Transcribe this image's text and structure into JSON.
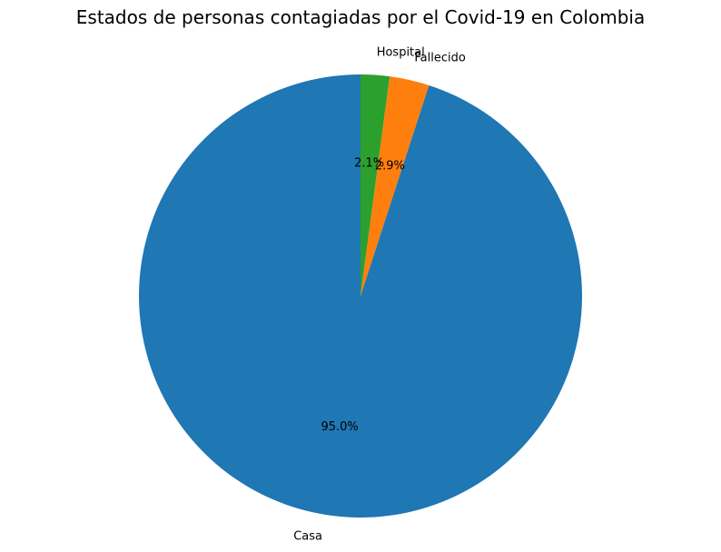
{
  "chart_data": {
    "type": "pie",
    "title": "Estados de personas contagiadas por el Covid-19 en Colombia",
    "categories": [
      "Casa",
      "Fallecido",
      "Hospital"
    ],
    "values": [
      95.0,
      2.9,
      2.1
    ],
    "percent_labels": [
      "95.0%",
      "2.9%",
      "2.1%"
    ],
    "colors": [
      "#1f77b4",
      "#ff7f0e",
      "#2ca02c"
    ],
    "start_angle_deg": 90,
    "direction": "counterclockwise",
    "legend": "none"
  }
}
